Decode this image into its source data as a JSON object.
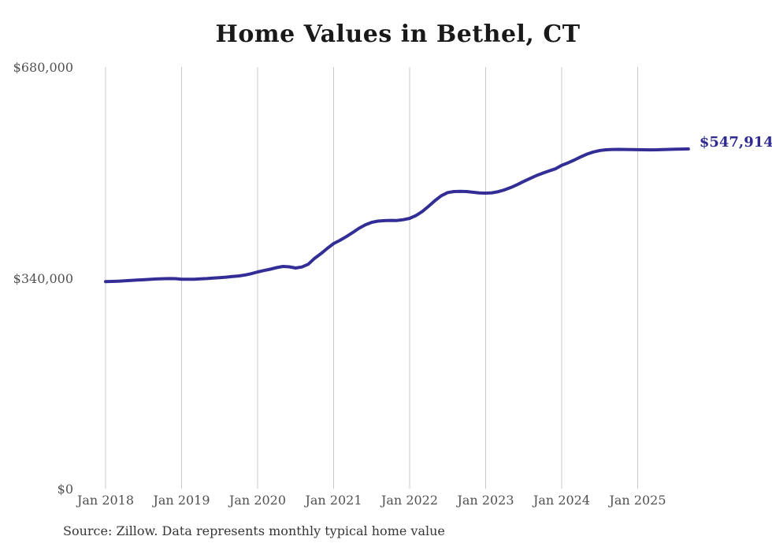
{
  "chart_data": {
    "type": "line",
    "title": "Home Values in Bethel, CT",
    "series_name": "Monthly typical home value",
    "frequency": "monthly",
    "start_month": "2018-01",
    "end_month": "2025-09",
    "values": [
      334000,
      334300,
      334700,
      335200,
      335800,
      336400,
      337000,
      337600,
      338200,
      338600,
      338800,
      338700,
      337900,
      337700,
      337900,
      338300,
      338900,
      339600,
      340400,
      341200,
      342100,
      343100,
      344600,
      346700,
      349500,
      351800,
      354000,
      356500,
      358400,
      357800,
      355900,
      357500,
      362000,
      371500,
      379000,
      387500,
      395300,
      400500,
      406500,
      413000,
      420000,
      425500,
      429500,
      431500,
      432300,
      432600,
      432500,
      433800,
      436000,
      440500,
      447000,
      455500,
      464500,
      472500,
      477500,
      479200,
      479500,
      479200,
      478000,
      477000,
      476600,
      477200,
      479000,
      482000,
      485800,
      490400,
      495400,
      500300,
      504800,
      508800,
      512300,
      515800,
      521500,
      525500,
      530000,
      535000,
      539500,
      543000,
      545300,
      546600,
      547100,
      547200,
      547000,
      546800,
      546700,
      546500,
      546400,
      546600,
      546900,
      547200,
      547500,
      547700,
      547914
    ],
    "latest_value": 547914,
    "end_label": "$547,914",
    "x_ticks": [
      {
        "label": "Jan 2018",
        "month": 0
      },
      {
        "label": "Jan 2019",
        "month": 12
      },
      {
        "label": "Jan 2020",
        "month": 24
      },
      {
        "label": "Jan 2021",
        "month": 36
      },
      {
        "label": "Jan 2022",
        "month": 48
      },
      {
        "label": "Jan 2023",
        "month": 60
      },
      {
        "label": "Jan 2024",
        "month": 72
      },
      {
        "label": "Jan 2025",
        "month": 84
      }
    ],
    "y_ticks": [
      {
        "label": "$0",
        "value": 0
      },
      {
        "label": "$340,000",
        "value": 340000
      },
      {
        "label": "$680,000",
        "value": 680000
      }
    ],
    "ylim": [
      0,
      680000
    ],
    "grid": "vertical-only",
    "legend": "none",
    "line_color": "#322e96",
    "end_label_color": "#2e2a90",
    "grid_color": "#c9c9c9",
    "source_note": "Source: Zillow. Data represents monthly typical home value"
  }
}
